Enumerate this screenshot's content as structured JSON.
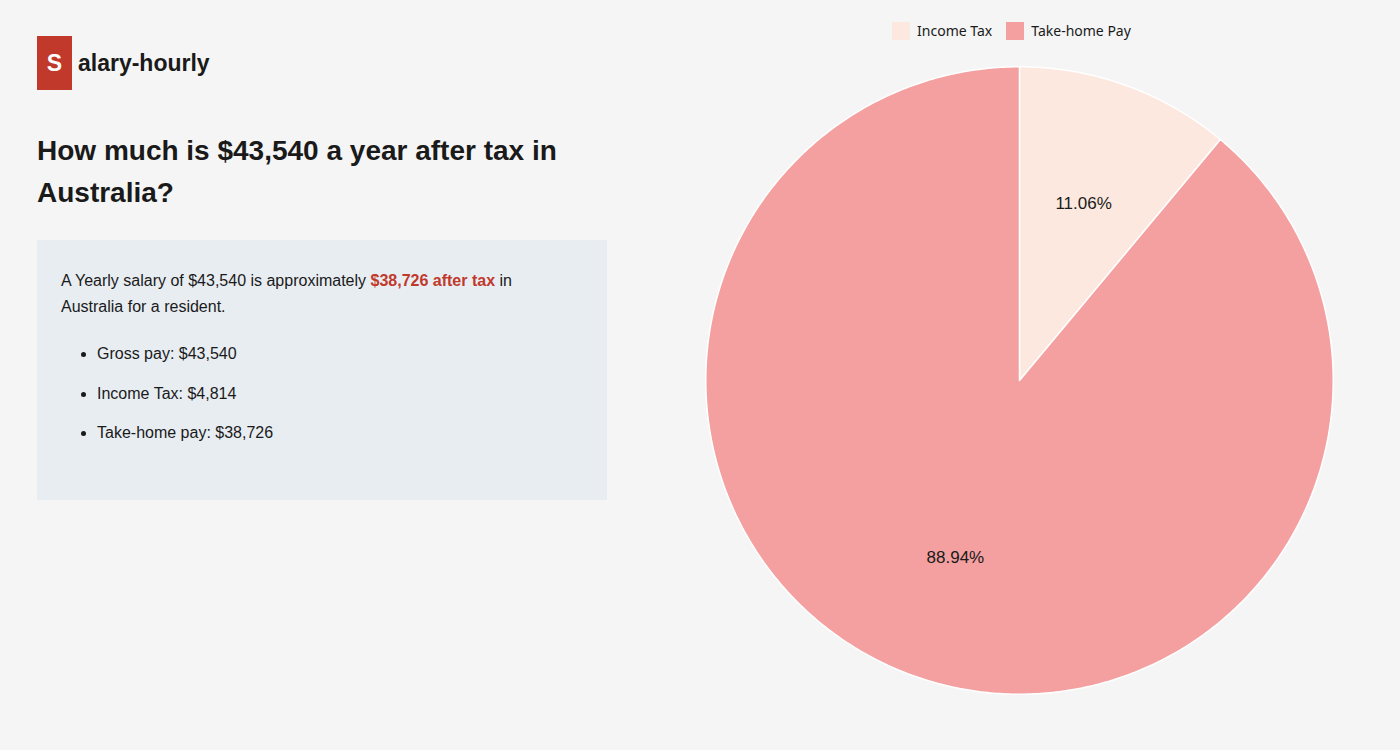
{
  "chart_data": {
    "type": "pie",
    "title": "How much is $43,540 a year after tax in Australia?",
    "categories": [
      "Income Tax",
      "Take-home Pay"
    ],
    "values": [
      11.06,
      88.94
    ],
    "value_labels": [
      "11.06%",
      "88.94%"
    ],
    "colors": [
      "#fce8df",
      "#f4a0a0"
    ],
    "data_labels": true,
    "legend": "top",
    "annotations": [
      {
        "text": "S",
        "color": "#c0392b"
      },
      {
        "text": "alary-hourly"
      },
      {
        "text": "A Yearly salary of $43,540 is approximately "
      },
      {
        "text": "$38,726 after tax",
        "color": "#c0392b"
      },
      {
        "text": " in"
      },
      {
        "text": "Australia for a resident."
      },
      {
        "text": "Gross pay: $43,540"
      },
      {
        "text": "Income Tax: $4,814"
      },
      {
        "text": "Take-home pay: $38,726"
      }
    ]
  }
}
